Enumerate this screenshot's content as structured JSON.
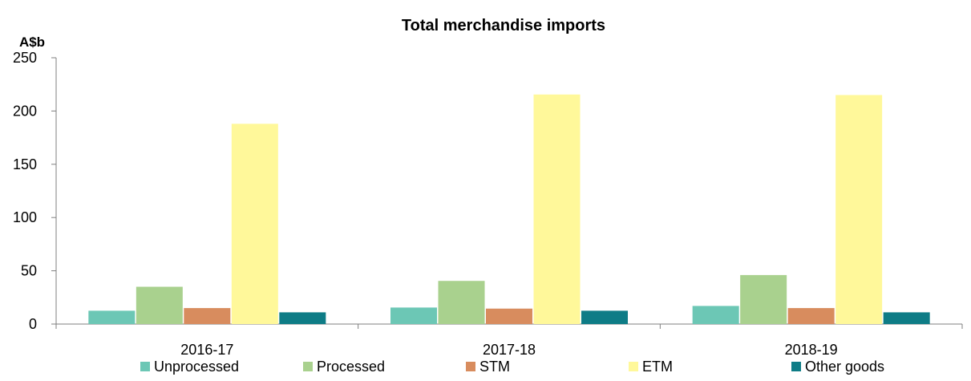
{
  "chart_data": {
    "type": "bar",
    "title": "Total merchandise imports",
    "y_unit": "A$b",
    "xlabel": "",
    "ylabel": "",
    "ylim": [
      0,
      250
    ],
    "y_ticks": [
      0,
      50,
      100,
      150,
      200,
      250
    ],
    "grid": false,
    "legend_position": "bottom",
    "categories": [
      "2016-17",
      "2017-18",
      "2018-19"
    ],
    "series": [
      {
        "name": "Unprocessed",
        "color": "#6CC7B5",
        "values": [
          12.5,
          15.5,
          17.0
        ]
      },
      {
        "name": "Processed",
        "color": "#A9D18E",
        "values": [
          35.0,
          40.5,
          46.0
        ]
      },
      {
        "name": "STM",
        "color": "#D88C5E",
        "values": [
          15.0,
          14.5,
          15.0
        ]
      },
      {
        "name": "ETM",
        "color": "#FFF89A",
        "values": [
          188.0,
          215.5,
          215.0
        ]
      },
      {
        "name": "Other goods",
        "color": "#0E7C86",
        "values": [
          11.0,
          12.5,
          11.0
        ]
      }
    ]
  }
}
